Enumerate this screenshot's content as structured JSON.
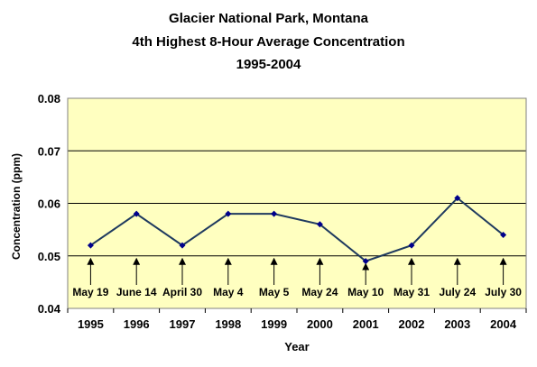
{
  "chart_data": {
    "type": "line",
    "title_lines": [
      "Glacier National Park, Montana",
      "4th Highest 8-Hour Average Concentration",
      "1995-2004"
    ],
    "xlabel": "Year",
    "ylabel": "Concentration (ppm)",
    "categories": [
      "1995",
      "1996",
      "1997",
      "1998",
      "1999",
      "2000",
      "2001",
      "2002",
      "2003",
      "2004"
    ],
    "values": [
      0.052,
      0.058,
      0.052,
      0.058,
      0.058,
      0.056,
      0.049,
      0.052,
      0.061,
      0.054
    ],
    "annotations": [
      "May 19",
      "June 14",
      "April 30",
      "May 4",
      "May 5",
      "May 24",
      "May 10",
      "May 31",
      "July 24",
      "July 30"
    ],
    "annotation_anchor_value": 0.05,
    "ylim": [
      0.04,
      0.08
    ],
    "yticks": [
      "0.04",
      "0.05",
      "0.06",
      "0.07",
      "0.08"
    ],
    "grid": true,
    "colors": {
      "plot_background": "#ffffc0",
      "line": "#1f3a5f",
      "marker": "#00008b",
      "grid": "#000000"
    }
  }
}
